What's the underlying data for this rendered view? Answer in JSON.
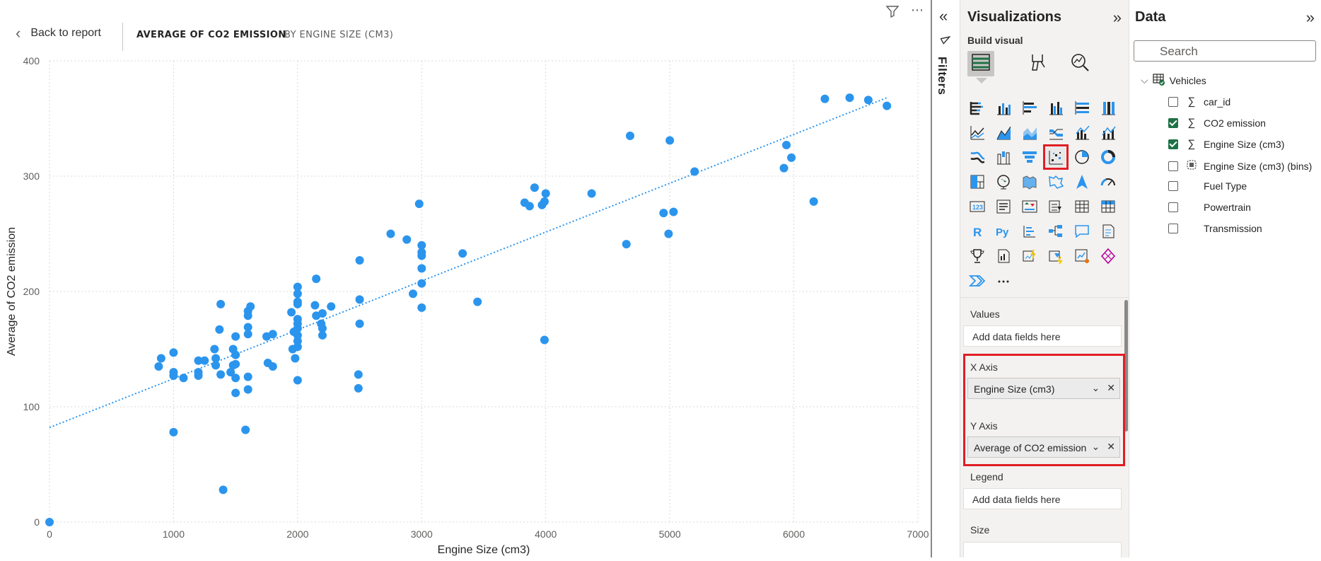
{
  "header": {
    "back_label": "Back to report",
    "crumb_active": "AVERAGE OF CO2 EMISSION",
    "crumb_inactive": "BY ENGINE SIZE (CM3)"
  },
  "filters_pane": {
    "label": "Filters"
  },
  "visualizations": {
    "title": "Visualizations",
    "build_visual_label": "Build visual",
    "values_label": "Values",
    "values_placeholder": "Add data fields here",
    "x_axis_label": "X Axis",
    "x_axis_field": "Engine Size (cm3)",
    "y_axis_label": "Y Axis",
    "y_axis_field": "Average of CO2 emission",
    "legend_label": "Legend",
    "legend_placeholder": "Add data fields here",
    "size_label": "Size",
    "more_visuals": "⋯"
  },
  "data_pane": {
    "title": "Data",
    "search_placeholder": "Search",
    "table_name": "Vehicles",
    "fields": [
      {
        "name": "car_id",
        "type_icon": "sigma-icon",
        "checked": false
      },
      {
        "name": "CO2 emission",
        "type_icon": "sigma-icon",
        "checked": true
      },
      {
        "name": "Engine Size (cm3)",
        "type_icon": "sigma-icon",
        "checked": true
      },
      {
        "name": "Engine Size (cm3) (bins)",
        "type_icon": "bins-icon",
        "checked": false
      },
      {
        "name": "Fuel Type",
        "type_icon": "",
        "checked": false
      },
      {
        "name": "Powertrain",
        "type_icon": "",
        "checked": false
      },
      {
        "name": "Transmission",
        "type_icon": "",
        "checked": false
      }
    ]
  },
  "colors": {
    "accent": "#2b95ed",
    "highlight": "#e01e25",
    "checkbox": "#1e7145"
  },
  "chart_data": {
    "type": "scatter",
    "title": "",
    "xlabel": "Engine Size (cm3)",
    "ylabel": "Average of CO2 emission",
    "xlim": [
      0,
      7000
    ],
    "ylim": [
      0,
      400
    ],
    "xticks": [
      0,
      1000,
      2000,
      3000,
      4000,
      5000,
      6000,
      7000
    ],
    "yticks": [
      0,
      100,
      200,
      300,
      400
    ],
    "grid": true,
    "trend_line": {
      "x": [
        0,
        6750
      ],
      "y": [
        82,
        368
      ]
    },
    "points": [
      [
        0,
        0
      ],
      [
        880,
        135
      ],
      [
        900,
        142
      ],
      [
        1000,
        147
      ],
      [
        1000,
        130
      ],
      [
        1000,
        127
      ],
      [
        1000,
        78
      ],
      [
        1080,
        125
      ],
      [
        1200,
        140
      ],
      [
        1200,
        130
      ],
      [
        1200,
        127
      ],
      [
        1250,
        140
      ],
      [
        1330,
        150
      ],
      [
        1340,
        142
      ],
      [
        1340,
        136
      ],
      [
        1370,
        167
      ],
      [
        1380,
        189
      ],
      [
        1380,
        128
      ],
      [
        1400,
        28
      ],
      [
        1460,
        130
      ],
      [
        1480,
        150
      ],
      [
        1480,
        136
      ],
      [
        1500,
        161
      ],
      [
        1500,
        145
      ],
      [
        1500,
        137
      ],
      [
        1500,
        125
      ],
      [
        1500,
        112
      ],
      [
        1580,
        80
      ],
      [
        1600,
        183
      ],
      [
        1600,
        179
      ],
      [
        1600,
        169
      ],
      [
        1600,
        163
      ],
      [
        1600,
        126
      ],
      [
        1600,
        115
      ],
      [
        1620,
        187
      ],
      [
        1750,
        161
      ],
      [
        1760,
        138
      ],
      [
        1800,
        163
      ],
      [
        1800,
        135
      ],
      [
        1950,
        182
      ],
      [
        1960,
        150
      ],
      [
        1970,
        165
      ],
      [
        1980,
        142
      ],
      [
        2000,
        204
      ],
      [
        2000,
        198
      ],
      [
        2000,
        191
      ],
      [
        2000,
        189
      ],
      [
        2000,
        176
      ],
      [
        2000,
        172
      ],
      [
        2000,
        168
      ],
      [
        2000,
        162
      ],
      [
        2000,
        157
      ],
      [
        2000,
        152
      ],
      [
        2000,
        123
      ],
      [
        2140,
        188
      ],
      [
        2150,
        211
      ],
      [
        2150,
        179
      ],
      [
        2190,
        172
      ],
      [
        2200,
        181
      ],
      [
        2200,
        168
      ],
      [
        2200,
        162
      ],
      [
        2270,
        187
      ],
      [
        2500,
        227
      ],
      [
        2500,
        193
      ],
      [
        2500,
        172
      ],
      [
        2490,
        128
      ],
      [
        2490,
        116
      ],
      [
        2750,
        250
      ],
      [
        2880,
        245
      ],
      [
        2930,
        198
      ],
      [
        2980,
        276
      ],
      [
        3000,
        240
      ],
      [
        3000,
        234
      ],
      [
        3000,
        231
      ],
      [
        3000,
        220
      ],
      [
        3000,
        207
      ],
      [
        3000,
        186
      ],
      [
        3330,
        233
      ],
      [
        3450,
        191
      ],
      [
        3830,
        277
      ],
      [
        3870,
        274
      ],
      [
        3910,
        290
      ],
      [
        3970,
        275
      ],
      [
        3990,
        278
      ],
      [
        4000,
        285
      ],
      [
        3990,
        158
      ],
      [
        4370,
        285
      ],
      [
        4650,
        241
      ],
      [
        4680,
        335
      ],
      [
        4950,
        268
      ],
      [
        4990,
        250
      ],
      [
        5000,
        331
      ],
      [
        5030,
        269
      ],
      [
        5200,
        304
      ],
      [
        5920,
        307
      ],
      [
        5940,
        327
      ],
      [
        5980,
        316
      ],
      [
        6160,
        278
      ],
      [
        6250,
        367
      ],
      [
        6450,
        368
      ],
      [
        6600,
        366
      ],
      [
        6750,
        361
      ]
    ]
  }
}
